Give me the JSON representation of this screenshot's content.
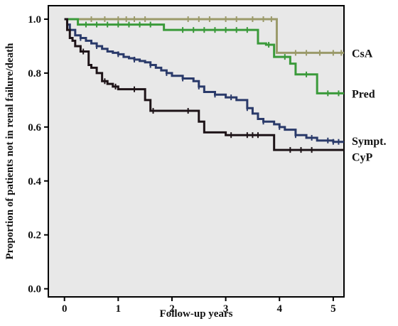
{
  "chart_data": {
    "type": "line",
    "subtype": "kaplan-meier step",
    "xlabel": "Follow-up years",
    "ylabel": "Proportion of patients not in renal failure/death",
    "xlim": [
      -0.3,
      5.2
    ],
    "ylim": [
      -0.03,
      1.05
    ],
    "x_ticks": [
      0,
      1,
      2,
      3,
      4,
      5
    ],
    "y_ticks": [
      0.0,
      0.2,
      0.4,
      0.6,
      0.8,
      1.0
    ],
    "x_tick_labels": [
      "0",
      "1",
      "2",
      "3",
      "4",
      "5"
    ],
    "y_tick_labels": [
      "0.0",
      "0.2",
      "0.4",
      "0.6",
      "0.8",
      "1.0"
    ],
    "grid": false,
    "plot_background": "#e8e8e8",
    "series": [
      {
        "name": "CsA",
        "color": "#9b9a6a",
        "label_y": 0.875,
        "steps": [
          [
            0,
            1.0
          ],
          [
            3.95,
            0.875
          ],
          [
            5.2,
            0.875
          ]
        ],
        "censor_x": [
          0.5,
          0.75,
          1.0,
          1.15,
          1.3,
          1.5,
          2.3,
          2.5,
          2.7,
          3.0,
          3.2,
          3.5,
          3.7,
          3.85,
          4.3,
          4.5,
          4.75,
          5.0,
          5.15
        ]
      },
      {
        "name": "Pred",
        "color": "#3a9a3a",
        "label_y": 0.725,
        "steps": [
          [
            0,
            1.0
          ],
          [
            0.25,
            0.98
          ],
          [
            1.85,
            0.96
          ],
          [
            3.6,
            0.91
          ],
          [
            3.75,
            0.905
          ],
          [
            3.9,
            0.86
          ],
          [
            4.2,
            0.835
          ],
          [
            4.3,
            0.795
          ],
          [
            4.7,
            0.725
          ],
          [
            5.2,
            0.725
          ]
        ],
        "censor_x": [
          0.4,
          0.6,
          0.8,
          1.0,
          1.2,
          1.4,
          1.6,
          2.2,
          2.4,
          2.6,
          2.8,
          3.0,
          3.2,
          3.4,
          3.8,
          4.1,
          4.5,
          4.9,
          5.1
        ]
      },
      {
        "name": "Sympt.",
        "color": "#2a3a6a",
        "label_y": 0.55,
        "steps": [
          [
            0,
            1.0
          ],
          [
            0.05,
            0.98
          ],
          [
            0.1,
            0.96
          ],
          [
            0.2,
            0.94
          ],
          [
            0.3,
            0.93
          ],
          [
            0.4,
            0.92
          ],
          [
            0.5,
            0.91
          ],
          [
            0.6,
            0.9
          ],
          [
            0.7,
            0.89
          ],
          [
            0.8,
            0.88
          ],
          [
            0.9,
            0.875
          ],
          [
            1.0,
            0.87
          ],
          [
            1.1,
            0.86
          ],
          [
            1.2,
            0.855
          ],
          [
            1.3,
            0.85
          ],
          [
            1.4,
            0.845
          ],
          [
            1.5,
            0.84
          ],
          [
            1.6,
            0.83
          ],
          [
            1.7,
            0.82
          ],
          [
            1.8,
            0.81
          ],
          [
            1.9,
            0.8
          ],
          [
            2.0,
            0.79
          ],
          [
            2.2,
            0.78
          ],
          [
            2.4,
            0.77
          ],
          [
            2.5,
            0.75
          ],
          [
            2.6,
            0.73
          ],
          [
            2.8,
            0.72
          ],
          [
            3.0,
            0.71
          ],
          [
            3.2,
            0.7
          ],
          [
            3.4,
            0.67
          ],
          [
            3.5,
            0.65
          ],
          [
            3.6,
            0.63
          ],
          [
            3.7,
            0.62
          ],
          [
            3.9,
            0.61
          ],
          [
            4.0,
            0.6
          ],
          [
            4.1,
            0.59
          ],
          [
            4.3,
            0.57
          ],
          [
            4.5,
            0.56
          ],
          [
            4.7,
            0.55
          ],
          [
            5.0,
            0.545
          ],
          [
            5.2,
            0.545
          ]
        ],
        "censor_x": [
          0.3,
          0.6,
          1.0,
          1.3,
          1.6,
          1.9,
          2.2,
          2.5,
          2.8,
          3.1,
          3.4,
          3.7,
          4.0,
          4.3,
          4.6,
          4.9,
          5.0,
          5.1
        ]
      },
      {
        "name": "CyP",
        "color": "#1e1418",
        "label_y": 0.49,
        "steps": [
          [
            0,
            1.0
          ],
          [
            0.05,
            0.96
          ],
          [
            0.1,
            0.93
          ],
          [
            0.15,
            0.92
          ],
          [
            0.2,
            0.9
          ],
          [
            0.3,
            0.88
          ],
          [
            0.45,
            0.83
          ],
          [
            0.5,
            0.82
          ],
          [
            0.6,
            0.8
          ],
          [
            0.7,
            0.77
          ],
          [
            0.8,
            0.76
          ],
          [
            0.9,
            0.75
          ],
          [
            1.0,
            0.74
          ],
          [
            1.5,
            0.7
          ],
          [
            1.6,
            0.66
          ],
          [
            2.5,
            0.62
          ],
          [
            2.6,
            0.58
          ],
          [
            3.0,
            0.57
          ],
          [
            3.9,
            0.515
          ],
          [
            5.2,
            0.515
          ]
        ],
        "censor_x": [
          0.35,
          0.75,
          0.95,
          1.3,
          1.65,
          2.3,
          3.1,
          3.4,
          3.5,
          3.6,
          4.2,
          4.4,
          4.6
        ]
      }
    ]
  }
}
